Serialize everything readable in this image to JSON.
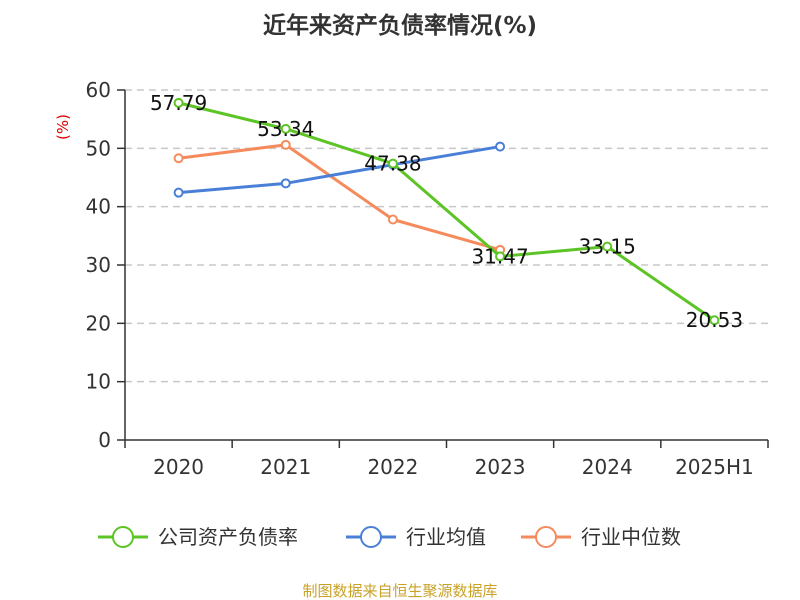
{
  "chart_data": {
    "type": "line",
    "title": "近年来资产负债率情况(%)",
    "ylabel": "(%)",
    "xlabel": "",
    "categories": [
      "2020",
      "2021",
      "2022",
      "2023",
      "2024",
      "2025H1"
    ],
    "ylim": [
      0,
      60
    ],
    "yticks": [
      0,
      10,
      20,
      30,
      40,
      50,
      60
    ],
    "grid": true,
    "legend_position": "bottom",
    "series": [
      {
        "name": "公司资产负债率",
        "color": "#5cc424",
        "values": [
          57.79,
          53.34,
          47.38,
          31.47,
          33.15,
          20.53
        ],
        "labels": [
          "57.79",
          "53.34",
          "47.38",
          "31.47",
          "33.15",
          "20.53"
        ]
      },
      {
        "name": "行业均值",
        "color": "#4a7fd8",
        "values": [
          42.4,
          44.0,
          47.2,
          50.3,
          null,
          null
        ],
        "labels": []
      },
      {
        "name": "行业中位数",
        "color": "#f58b5c",
        "values": [
          48.3,
          50.6,
          37.8,
          32.6,
          null,
          null
        ],
        "labels": []
      }
    ],
    "source": "制图数据来自恒生聚源数据库"
  }
}
